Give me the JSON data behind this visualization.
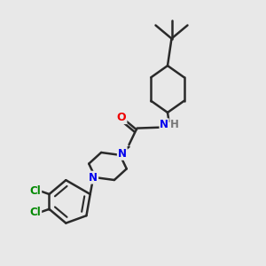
{
  "background_color": "#e8e8e8",
  "bond_color": "#2a2a2a",
  "bond_width": 1.8,
  "atom_colors": {
    "N": "#0000ee",
    "O": "#ee0000",
    "Cl": "#008800",
    "H": "#777777",
    "C": "#2a2a2a"
  },
  "font_size_atom": 8.5,
  "xlim": [
    0,
    10
  ],
  "ylim": [
    0,
    10
  ]
}
